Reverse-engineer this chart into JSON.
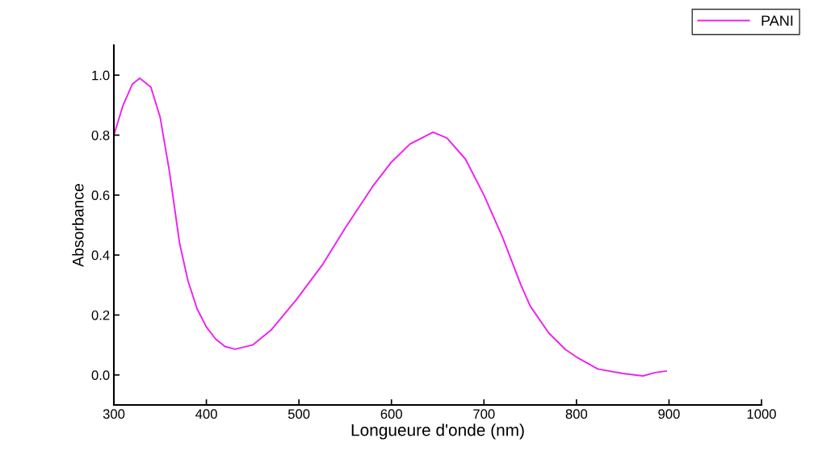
{
  "chart_data": {
    "type": "line",
    "xlabel": "Longueure d'onde (nm)",
    "ylabel": "Absorbance",
    "xlim": [
      300,
      1000
    ],
    "xticks": [
      300,
      400,
      500,
      600,
      700,
      800,
      900,
      1000
    ],
    "ylim": [
      -0.1,
      1.1
    ],
    "yticks": [
      {
        "value": 0,
        "label": "0.0"
      },
      0.2,
      0.4,
      0.6,
      0.8,
      {
        "value": 1,
        "label": "1.0"
      }
    ],
    "grid": false,
    "legend": "top right",
    "series": [
      {
        "name": "PANI",
        "color": "#ee22ee",
        "x": [
          300,
          310,
          320,
          328,
          340,
          350,
          360,
          371,
          380,
          390,
          400,
          410,
          420,
          431,
          450,
          470,
          497,
          526,
          550,
          580,
          600,
          620,
          645,
          660,
          680,
          700,
          720,
          730,
          740,
          750,
          770,
          788,
          800,
          823,
          850,
          872,
          885,
          897
        ],
        "values": [
          0.8,
          0.9,
          0.97,
          0.99,
          0.96,
          0.86,
          0.68,
          0.44,
          0.315,
          0.22,
          0.16,
          0.12,
          0.095,
          0.086,
          0.1,
          0.15,
          0.25,
          0.37,
          0.49,
          0.63,
          0.71,
          0.77,
          0.81,
          0.79,
          0.72,
          0.6,
          0.46,
          0.38,
          0.3,
          0.23,
          0.14,
          0.085,
          0.06,
          0.02,
          0.005,
          -0.003,
          0.008,
          0.013
        ]
      }
    ]
  }
}
